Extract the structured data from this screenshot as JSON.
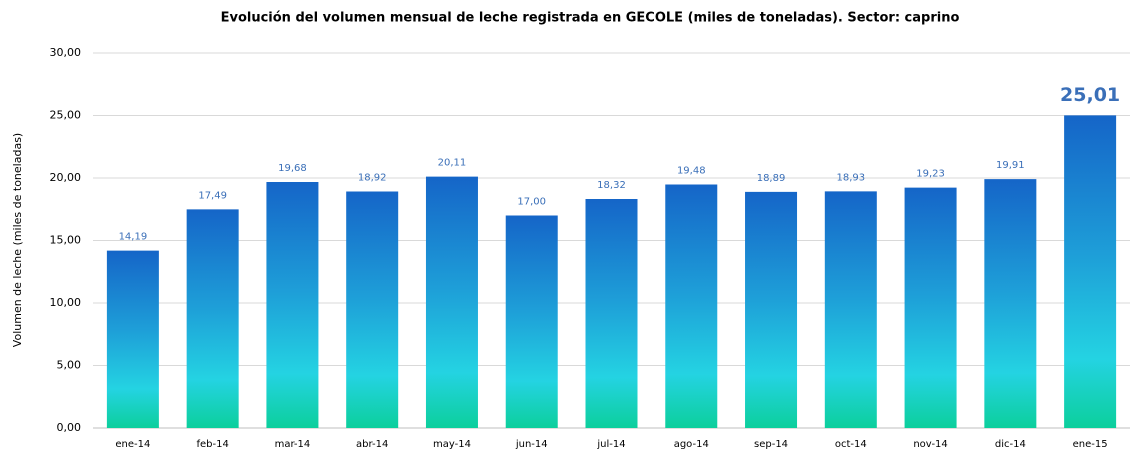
{
  "chart_data": {
    "type": "bar",
    "title": "Evolución del volumen mensual de leche registrada en GECOLE  (miles de toneladas).  Sector: caprino",
    "y_label": "Volumen de leche (miles de toneladas)",
    "categories": [
      "ene-14",
      "feb-14",
      "mar-14",
      "abr-14",
      "may-14",
      "jun-14",
      "jul-14",
      "ago-14",
      "sep-14",
      "oct-14",
      "nov-14",
      "dic-14",
      "ene-15"
    ],
    "values": [
      14.19,
      17.49,
      19.68,
      18.92,
      20.11,
      17.0,
      18.32,
      19.48,
      18.89,
      18.93,
      19.23,
      19.91,
      25.01
    ],
    "value_labels": [
      "14,19",
      "17,49",
      "19,68",
      "18,92",
      "20,11",
      "17,00",
      "18,32",
      "19,48",
      "18,89",
      "18,93",
      "19,23",
      "19,91",
      "25,01"
    ],
    "ylim": [
      0,
      30
    ],
    "yticks": [
      {
        "value": 0,
        "label": "0,00"
      },
      {
        "value": 5,
        "label": "5,00"
      },
      {
        "value": 10,
        "label": "10,00"
      },
      {
        "value": 15,
        "label": "15,00"
      },
      {
        "value": 20,
        "label": "20,00"
      },
      {
        "value": 25,
        "label": "25,00"
      },
      {
        "value": 30,
        "label": "30,00"
      }
    ],
    "grid": true
  }
}
